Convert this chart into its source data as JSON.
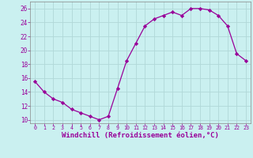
{
  "x": [
    0,
    1,
    2,
    3,
    4,
    5,
    6,
    7,
    8,
    9,
    10,
    11,
    12,
    13,
    14,
    15,
    16,
    17,
    18,
    19,
    20,
    21,
    22,
    23
  ],
  "y": [
    15.5,
    14.0,
    13.0,
    12.5,
    11.5,
    11.0,
    10.5,
    10.0,
    10.5,
    14.5,
    18.5,
    21.0,
    23.5,
    24.5,
    25.0,
    25.5,
    25.0,
    26.0,
    26.0,
    25.8,
    25.0,
    23.5,
    19.5,
    18.5
  ],
  "line_color": "#990099",
  "marker": "D",
  "marker_size": 2.2,
  "bg_color": "#caf0f0",
  "grid_color": "#b0d8d8",
  "xlabel": "Windchill (Refroidissement éolien,°C)",
  "xlabel_fontsize": 6.5,
  "tick_label_color": "#990099",
  "axis_label_color": "#990099",
  "xlim": [
    -0.5,
    23.5
  ],
  "ylim": [
    9.5,
    27
  ],
  "yticks": [
    10,
    12,
    14,
    16,
    18,
    20,
    22,
    24,
    26
  ],
  "xticks": [
    0,
    1,
    2,
    3,
    4,
    5,
    6,
    7,
    8,
    9,
    10,
    11,
    12,
    13,
    14,
    15,
    16,
    17,
    18,
    19,
    20,
    21,
    22,
    23
  ]
}
